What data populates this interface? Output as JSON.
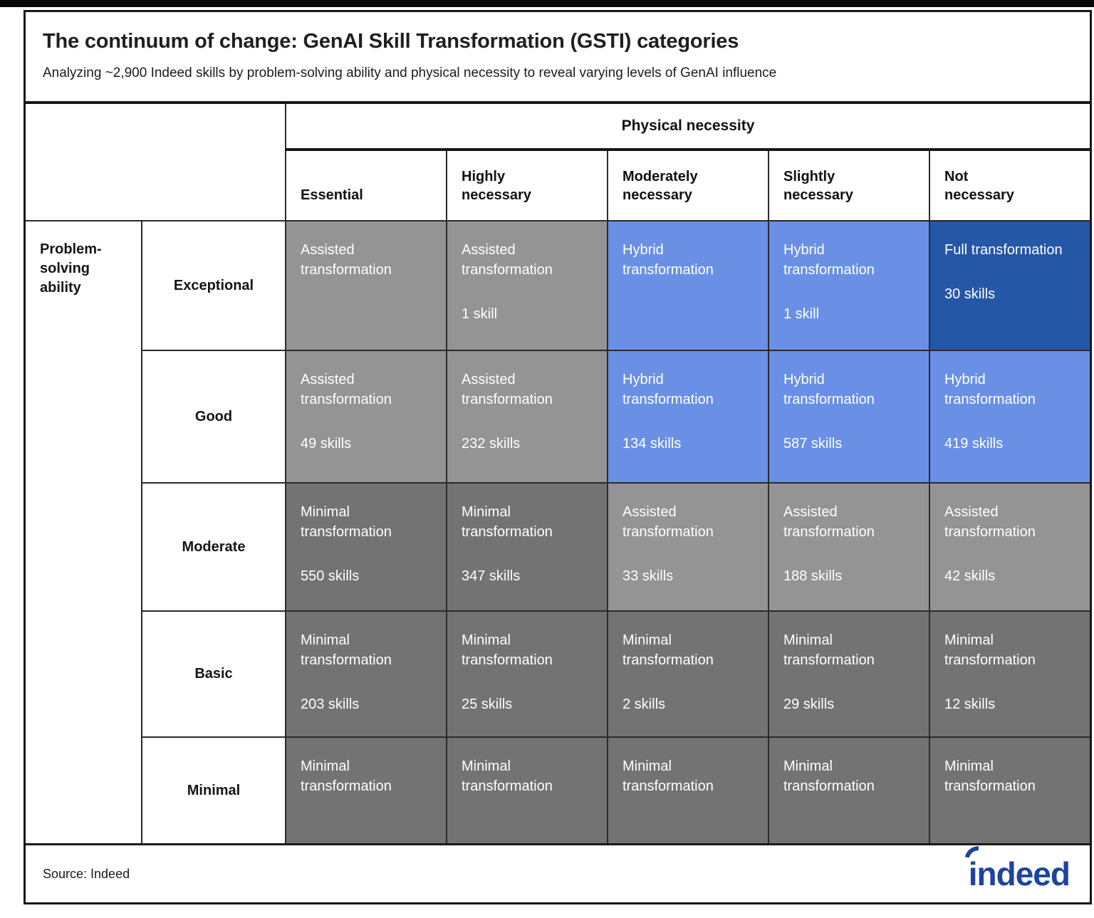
{
  "chart_data": {
    "type": "heatmap",
    "title": "The continuum of change: GenAI Skill Transformation (GSTI) categories",
    "subtitle": "Analyzing ~2,900 Indeed skills by problem-solving ability and physical necessity to reveal varying levels of GenAI influence",
    "x_axis_label": "Physical necessity",
    "y_axis_label": "Problem-solving ability",
    "x_categories": [
      "Essential",
      "Highly necessary",
      "Moderately necessary",
      "Slightly necessary",
      "Not necessary"
    ],
    "y_categories": [
      "Exceptional",
      "Good",
      "Moderate",
      "Basic",
      "Minimal"
    ],
    "legend": {
      "Full transformation": "#2557a7",
      "Hybrid transformation": "#6a90e6",
      "Assisted transformation": "#949494",
      "Minimal transformation": "#737373"
    },
    "cells": [
      [
        {
          "category": "Assisted transformation",
          "skills": null,
          "skills_label": "",
          "color": "assisted"
        },
        {
          "category": "Assisted transformation",
          "skills": 1,
          "skills_label": "1 skill",
          "color": "assisted"
        },
        {
          "category": "Hybrid transformation",
          "skills": null,
          "skills_label": "",
          "color": "hybrid"
        },
        {
          "category": "Hybrid transformation",
          "skills": 1,
          "skills_label": "1 skill",
          "color": "hybrid"
        },
        {
          "category": "Full transformation",
          "skills": 30,
          "skills_label": "30 skills",
          "color": "full"
        }
      ],
      [
        {
          "category": "Assisted transformation",
          "skills": 49,
          "skills_label": "49 skills",
          "color": "assisted"
        },
        {
          "category": "Assisted transformation",
          "skills": 232,
          "skills_label": "232 skills",
          "color": "assisted"
        },
        {
          "category": "Hybrid transformation",
          "skills": 134,
          "skills_label": "134 skills",
          "color": "hybrid"
        },
        {
          "category": "Hybrid transformation",
          "skills": 587,
          "skills_label": "587 skills",
          "color": "hybrid"
        },
        {
          "category": "Hybrid transformation",
          "skills": 419,
          "skills_label": "419 skills",
          "color": "hybrid"
        }
      ],
      [
        {
          "category": "Minimal transformation",
          "skills": 550,
          "skills_label": "550 skills",
          "color": "minimal"
        },
        {
          "category": "Minimal transformation",
          "skills": 347,
          "skills_label": "347 skills",
          "color": "minimal"
        },
        {
          "category": "Assisted transformation",
          "skills": 33,
          "skills_label": "33 skills",
          "color": "assisted"
        },
        {
          "category": "Assisted transformation",
          "skills": 188,
          "skills_label": "188 skills",
          "color": "assisted"
        },
        {
          "category": "Assisted transformation",
          "skills": 42,
          "skills_label": "42 skills",
          "color": "assisted"
        }
      ],
      [
        {
          "category": "Minimal transformation",
          "skills": 203,
          "skills_label": "203 skills",
          "color": "minimal"
        },
        {
          "category": "Minimal transformation",
          "skills": 25,
          "skills_label": "25 skills",
          "color": "minimal"
        },
        {
          "category": "Minimal transformation",
          "skills": 2,
          "skills_label": "2 skills",
          "color": "minimal"
        },
        {
          "category": "Minimal transformation",
          "skills": 29,
          "skills_label": "29 skills",
          "color": "minimal"
        },
        {
          "category": "Minimal transformation",
          "skills": 12,
          "skills_label": "12 skills",
          "color": "minimal"
        }
      ],
      [
        {
          "category": "Minimal transformation",
          "skills": null,
          "skills_label": "",
          "color": "minimal"
        },
        {
          "category": "Minimal transformation",
          "skills": null,
          "skills_label": "",
          "color": "minimal"
        },
        {
          "category": "Minimal transformation",
          "skills": null,
          "skills_label": "",
          "color": "minimal"
        },
        {
          "category": "Minimal transformation",
          "skills": null,
          "skills_label": "",
          "color": "minimal"
        },
        {
          "category": "Minimal transformation",
          "skills": null,
          "skills_label": "",
          "color": "minimal"
        }
      ]
    ]
  },
  "display": {
    "columns": [
      "Essential",
      "Highly\nnecessary",
      "Moderately\nnecessary",
      "Slightly\nnecessary",
      "Not\nnecessary"
    ],
    "row_group_label": "Problem-\nsolving\nability"
  },
  "footer": {
    "source": "Source: Indeed",
    "logo_text": "indeed"
  },
  "colors": {
    "assisted": "#949494",
    "minimal": "#737373",
    "hybrid": "#6a90e6",
    "full": "#2557a7",
    "logo": "#1d449f"
  }
}
